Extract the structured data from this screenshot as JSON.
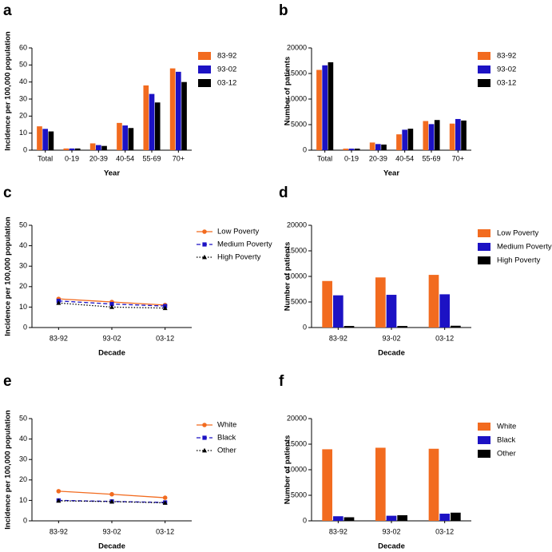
{
  "chart_data": [
    {
      "label": "a",
      "type": "bar",
      "y_label": "Incidence per 100,000 population",
      "x_label": "Year",
      "categories": [
        "Total",
        "0-19",
        "20-39",
        "40-54",
        "55-69",
        "70+"
      ],
      "series": [
        {
          "name": "83-92",
          "color": "#f26b1f",
          "values": [
            14,
            1,
            4,
            16,
            38,
            48
          ]
        },
        {
          "name": "93-02",
          "color": "#1c12c4",
          "values": [
            12.5,
            1,
            3,
            14.5,
            33,
            46
          ]
        },
        {
          "name": "03-12",
          "color": "#000000",
          "values": [
            11,
            1,
            2.5,
            13,
            28,
            40
          ]
        }
      ],
      "ylim": [
        0,
        60
      ],
      "yticks": [
        0,
        10,
        20,
        30,
        40,
        50,
        60
      ]
    },
    {
      "label": "b",
      "type": "bar",
      "y_label": "Number of patients",
      "x_label": "Year",
      "categories": [
        "Total",
        "0-19",
        "20-39",
        "40-54",
        "55-69",
        "70+"
      ],
      "series": [
        {
          "name": "83-92",
          "color": "#f26b1f",
          "values": [
            15700,
            300,
            1500,
            3100,
            5700,
            5200
          ]
        },
        {
          "name": "93-02",
          "color": "#1c12c4",
          "values": [
            16600,
            300,
            1200,
            4000,
            5100,
            6100
          ]
        },
        {
          "name": "03-12",
          "color": "#000000",
          "values": [
            17200,
            300,
            1100,
            4200,
            5900,
            5800
          ]
        }
      ],
      "ylim": [
        0,
        20000
      ],
      "yticks": [
        0,
        5000,
        10000,
        15000,
        20000
      ]
    },
    {
      "label": "c",
      "type": "line",
      "y_label": "Incidence per 100,000 population",
      "x_label": "Decade",
      "categories": [
        "83-92",
        "93-02",
        "03-12"
      ],
      "series": [
        {
          "name": "Low Poverty",
          "color": "#f26b1f",
          "dash": "solid",
          "marker": "circle",
          "values": [
            14,
            12.5,
            11
          ]
        },
        {
          "name": "Medium Poverty",
          "color": "#1c12c4",
          "dash": "dashed",
          "marker": "square",
          "values": [
            13,
            11.5,
            10.5
          ]
        },
        {
          "name": "High Poverty",
          "color": "#000000",
          "dash": "dotted",
          "marker": "triangle",
          "values": [
            12,
            10,
            9.5
          ]
        }
      ],
      "ylim": [
        0,
        50
      ],
      "yticks": [
        0,
        10,
        20,
        30,
        40,
        50
      ]
    },
    {
      "label": "d",
      "type": "bar",
      "y_label": "Number of patients",
      "x_label": "Decade",
      "categories": [
        "83-92",
        "93-02",
        "03-12"
      ],
      "series": [
        {
          "name": "Low Poverty",
          "color": "#f26b1f",
          "values": [
            9100,
            9800,
            10300
          ]
        },
        {
          "name": "Medium Poverty",
          "color": "#1c12c4",
          "values": [
            6300,
            6400,
            6500
          ]
        },
        {
          "name": "High Poverty",
          "color": "#000000",
          "values": [
            300,
            300,
            350
          ]
        }
      ],
      "ylim": [
        0,
        20000
      ],
      "yticks": [
        0,
        5000,
        10000,
        15000,
        20000
      ]
    },
    {
      "label": "e",
      "type": "line",
      "y_label": "Incidence per 100,000 population",
      "x_label": "Decade",
      "categories": [
        "83-92",
        "93-02",
        "03-12"
      ],
      "series": [
        {
          "name": "White",
          "color": "#f26b1f",
          "dash": "solid",
          "marker": "circle",
          "values": [
            14.5,
            13,
            11.3
          ]
        },
        {
          "name": "Black",
          "color": "#1c12c4",
          "dash": "dashed",
          "marker": "square",
          "values": [
            10,
            9.5,
            9
          ]
        },
        {
          "name": "Other",
          "color": "#000000",
          "dash": "dotted",
          "marker": "triangle",
          "values": [
            9.8,
            9.4,
            8.8
          ]
        }
      ],
      "ylim": [
        0,
        50
      ],
      "yticks": [
        0,
        10,
        20,
        30,
        40,
        50
      ]
    },
    {
      "label": "f",
      "type": "bar",
      "y_label": "Number of patients",
      "x_label": "Decade",
      "categories": [
        "83-92",
        "93-02",
        "03-12"
      ],
      "series": [
        {
          "name": "White",
          "color": "#f26b1f",
          "values": [
            14000,
            14300,
            14100
          ]
        },
        {
          "name": "Black",
          "color": "#1c12c4",
          "values": [
            900,
            1000,
            1400
          ]
        },
        {
          "name": "Other",
          "color": "#000000",
          "values": [
            700,
            1100,
            1600
          ]
        }
      ],
      "ylim": [
        0,
        20000
      ],
      "yticks": [
        0,
        5000,
        10000,
        15000,
        20000
      ]
    }
  ]
}
